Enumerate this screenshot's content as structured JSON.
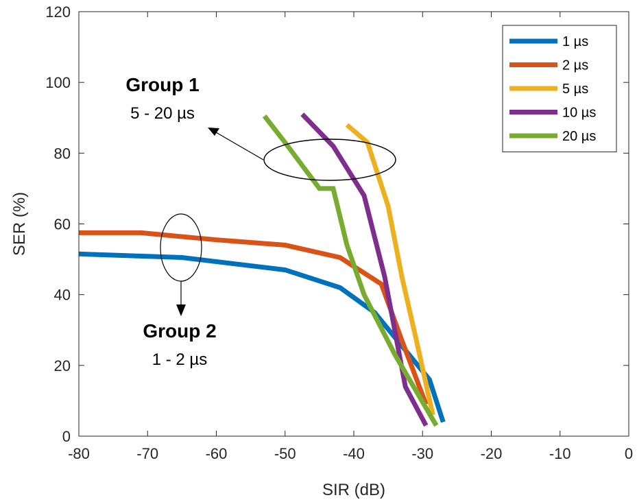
{
  "chart_data": {
    "type": "line",
    "xlabel": "SIR (dB)",
    "ylabel": "SER (%)",
    "xlim": [
      -80,
      0
    ],
    "ylim": [
      0,
      120
    ],
    "xticks": [
      -80,
      -70,
      -60,
      -50,
      -40,
      -30,
      -20,
      -10,
      0
    ],
    "yticks": [
      0,
      20,
      40,
      60,
      80,
      100,
      120
    ],
    "grid": false,
    "legend_position": "top-right",
    "series": [
      {
        "name": "1 µs",
        "color": "#0072BD",
        "x": [
          -80,
          -65,
          -50,
          -42,
          -37,
          -29,
          -27
        ],
        "y": [
          51.5,
          50.5,
          47,
          42,
          35,
          16,
          4
        ]
      },
      {
        "name": "2 µs",
        "color": "#D95319",
        "x": [
          -80,
          -71,
          -60,
          -50,
          -42,
          -36,
          -33,
          -29.5
        ],
        "y": [
          57.5,
          57.5,
          55.5,
          54,
          50.5,
          43,
          27,
          9
        ]
      },
      {
        "name": "5 µs",
        "color": "#EDB120",
        "x": [
          -41,
          -38,
          -35,
          -33,
          -31,
          -28.5
        ],
        "y": [
          88,
          83,
          65,
          45,
          28,
          6
        ]
      },
      {
        "name": "10 µs",
        "color": "#7E2F8E",
        "x": [
          -47.5,
          -43,
          -38.5,
          -35.5,
          -32.5,
          -29.5
        ],
        "y": [
          91,
          82,
          68,
          45,
          14,
          3
        ]
      },
      {
        "name": "20 µs",
        "color": "#77AC30",
        "x": [
          -53,
          -50,
          -45,
          -43,
          -41,
          -38.5,
          -34,
          -28
        ],
        "y": [
          90.5,
          83,
          70,
          70,
          54,
          40,
          23,
          3
        ]
      }
    ],
    "annotations": [
      {
        "title": "Group 1",
        "subtitle": "5 - 20 µs"
      },
      {
        "title": "Group 2",
        "subtitle": "1 - 2 µs"
      }
    ]
  }
}
